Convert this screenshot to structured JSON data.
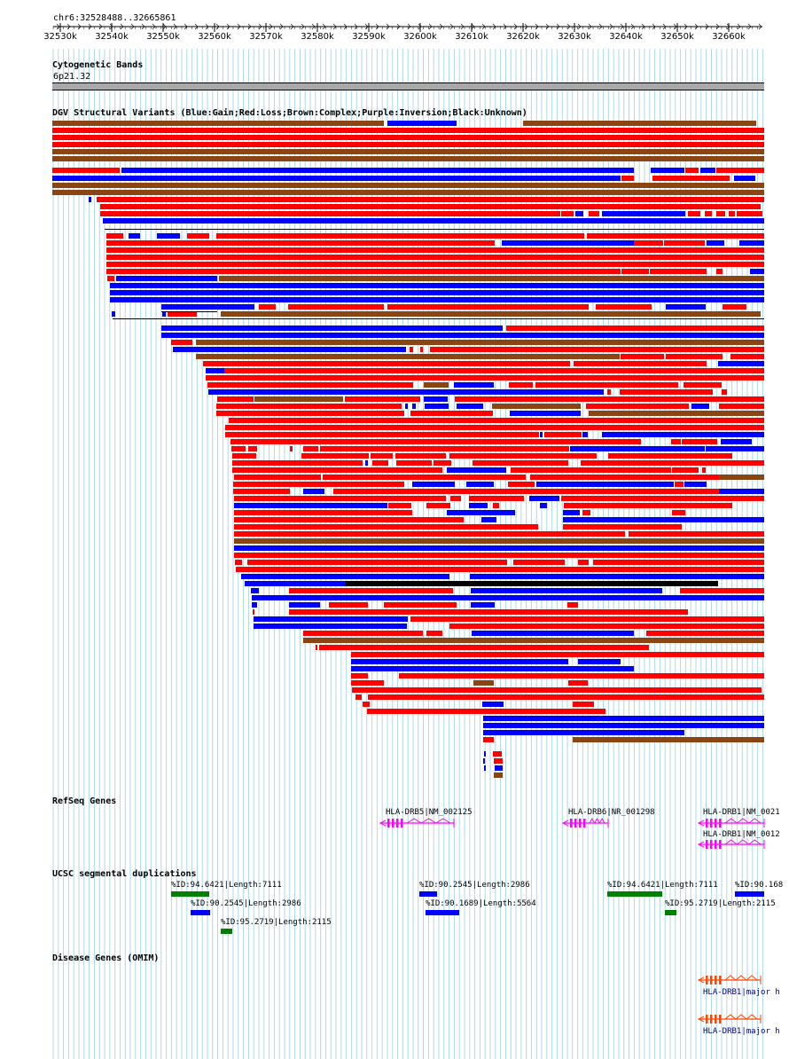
{
  "header": {
    "position_label": "chr6:32528488..32665861"
  },
  "ruler": {
    "ticks": [
      "32530k",
      "32540k",
      "32550k",
      "32560k",
      "32570k",
      "32580k",
      "32590k",
      "32600k",
      "32610k",
      "32620k",
      "32630k",
      "32640k",
      "32650k",
      "32660k"
    ]
  },
  "tracks": {
    "cytoband": {
      "title": "Cytogenetic Bands",
      "band_label": "6p21.32"
    },
    "dgv": {
      "title": "DGV Structural Variants (Blue:Gain;Red:Loss;Brown:Complex;Purple:Inversion;Black:Unknown)"
    },
    "refseq": {
      "title": "RefSeq Genes",
      "labels": [
        "HLA-DRB5|NM_002125",
        "HLA-DRB6|NR_001298",
        "HLA-DRB1|NM_0021",
        "HLA-DRB1|NM_0012"
      ]
    },
    "segdup": {
      "title": "UCSC segmental duplications",
      "labels": [
        "%ID:94.6421|Length:7111",
        "%ID:90.2545|Length:2986",
        "%ID:95.2719|Length:2115",
        "%ID:90.2545|Length:2986",
        "%ID:90.1689|Length:5564",
        "%ID:94.6421|Length:7111",
        "%ID:90.168",
        "%ID:95.2719|Length:2115"
      ]
    },
    "omim": {
      "title": "Disease Genes (OMIM)",
      "labels": [
        "HLA-DRB1|major h",
        "HLA-DRB1|major h"
      ]
    }
  },
  "colors": {
    "gain": "#0000ff",
    "loss": "#ff0000",
    "complex": "#8b4513",
    "unknown": "#000000",
    "refseq": "#ff00ff",
    "segdup_green": "#008000",
    "segdup_blue": "#0000ff",
    "omim": "#ff4500",
    "omim_label": "#00008b",
    "grid": "#add8e6"
  }
}
